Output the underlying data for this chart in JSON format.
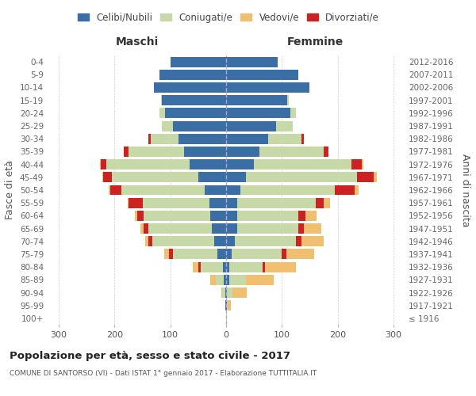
{
  "age_groups": [
    "100+",
    "95-99",
    "90-94",
    "85-89",
    "80-84",
    "75-79",
    "70-74",
    "65-69",
    "60-64",
    "55-59",
    "50-54",
    "45-49",
    "40-44",
    "35-39",
    "30-34",
    "25-29",
    "20-24",
    "15-19",
    "10-14",
    "5-9",
    "0-4"
  ],
  "birth_years": [
    "≤ 1916",
    "1917-1921",
    "1922-1926",
    "1927-1931",
    "1932-1936",
    "1937-1941",
    "1942-1946",
    "1947-1951",
    "1952-1956",
    "1957-1961",
    "1962-1966",
    "1967-1971",
    "1972-1976",
    "1977-1981",
    "1982-1986",
    "1987-1991",
    "1992-1996",
    "1997-2001",
    "2002-2006",
    "2007-2011",
    "2012-2016"
  ],
  "males": {
    "celibe": [
      0,
      1,
      2,
      4,
      5,
      15,
      22,
      25,
      28,
      30,
      38,
      50,
      65,
      75,
      85,
      95,
      110,
      115,
      130,
      120,
      100
    ],
    "coniugato": [
      0,
      1,
      5,
      15,
      40,
      80,
      110,
      115,
      120,
      120,
      150,
      155,
      150,
      100,
      50,
      20,
      10,
      2,
      0,
      0,
      0
    ],
    "vedovo": [
      0,
      0,
      2,
      10,
      10,
      8,
      5,
      5,
      3,
      2,
      2,
      2,
      1,
      1,
      0,
      0,
      0,
      0,
      0,
      0,
      0
    ],
    "divorziato": [
      0,
      0,
      0,
      0,
      5,
      8,
      8,
      8,
      12,
      25,
      20,
      15,
      10,
      8,
      5,
      0,
      0,
      0,
      0,
      0,
      0
    ]
  },
  "females": {
    "nubile": [
      0,
      1,
      2,
      5,
      5,
      10,
      15,
      20,
      20,
      20,
      25,
      35,
      50,
      60,
      75,
      90,
      115,
      110,
      150,
      130,
      92
    ],
    "coniugata": [
      0,
      2,
      10,
      30,
      60,
      90,
      110,
      110,
      110,
      140,
      170,
      200,
      175,
      115,
      60,
      30,
      10,
      2,
      0,
      0,
      0
    ],
    "vedova": [
      2,
      5,
      25,
      50,
      55,
      50,
      40,
      30,
      20,
      12,
      8,
      5,
      3,
      1,
      0,
      0,
      0,
      0,
      0,
      0,
      0
    ],
    "divorziata": [
      0,
      0,
      0,
      0,
      5,
      8,
      10,
      10,
      12,
      15,
      35,
      30,
      18,
      8,
      5,
      0,
      0,
      0,
      0,
      0,
      0
    ]
  },
  "colors": {
    "celibe": "#3a6ea5",
    "coniugato": "#c8d9a8",
    "vedovo": "#f0c070",
    "divorziato": "#cc2222"
  },
  "legend_labels": [
    "Celibi/Nubili",
    "Coniugati/e",
    "Vedovi/e",
    "Divorziati/e"
  ],
  "title": "Popolazione per età, sesso e stato civile - 2017",
  "subtitle": "COMUNE DI SANTORSO (VI) - Dati ISTAT 1° gennaio 2017 - Elaborazione TUTTITALIA.IT",
  "ylabel_left": "Fasce di età",
  "ylabel_right": "Anni di nascita",
  "xlabel_left": "Maschi",
  "xlabel_right": "Femmine",
  "xlim": 320,
  "bg_color": "#ffffff",
  "grid_color": "#cccccc",
  "bar_height": 0.8
}
